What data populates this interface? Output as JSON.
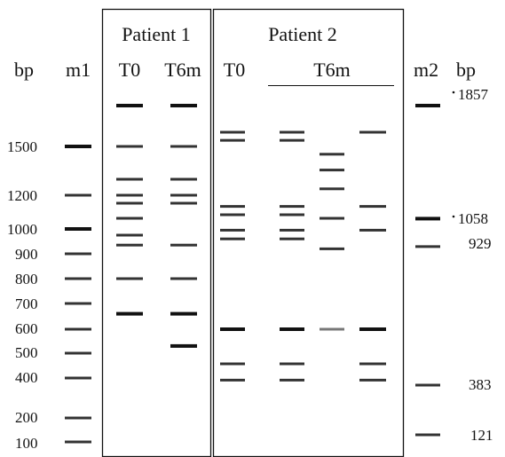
{
  "headers": {
    "bp_left": "bp",
    "m1": "m1",
    "patient1": "Patient 1",
    "patient2": "Patient 2",
    "p1_t0": "T0",
    "p1_t6m": "T6m",
    "p2_t0": "T0",
    "p2_t6m": "T6m",
    "m2": "m2",
    "bp_right": "bp"
  },
  "ladder_left_labels": [
    "1500",
    "1200",
    "1000",
    "900",
    "800",
    "700",
    "600",
    "500",
    "400",
    "200",
    "100"
  ],
  "ladder_right_labels": [
    "1857",
    "1058",
    "929",
    "383",
    "121"
  ],
  "lanes": [
    {
      "name": "m1",
      "bands_bp": [
        1500,
        1200,
        1000,
        900,
        800,
        700,
        600,
        500,
        400,
        200,
        100
      ]
    },
    {
      "name": "p1-t0",
      "bands_bp": [
        1857,
        1500,
        1300,
        1200,
        1150,
        1060,
        975,
        935,
        800,
        660
      ]
    },
    {
      "name": "p1-t6m",
      "bands_bp": [
        1857,
        1500,
        1300,
        1200,
        1150,
        935,
        800,
        660,
        530
      ]
    },
    {
      "name": "p2-t0",
      "bands_bp": [
        1570,
        1530,
        1130,
        1080,
        995,
        960,
        600,
        450,
        395
      ]
    },
    {
      "name": "p2-t6m-1",
      "bands_bp": [
        1570,
        1530,
        1130,
        1080,
        995,
        960,
        600,
        450,
        395
      ]
    },
    {
      "name": "p2-t6m-2",
      "bands_bp": [
        1420,
        1340,
        1240,
        1060,
        920,
        600
      ]
    },
    {
      "name": "p2-t6m-3",
      "bands_bp": [
        1570,
        1130,
        995,
        600,
        450,
        395
      ]
    },
    {
      "name": "m2",
      "bands_bp": [
        1857,
        1058,
        929,
        383,
        121
      ]
    }
  ]
}
